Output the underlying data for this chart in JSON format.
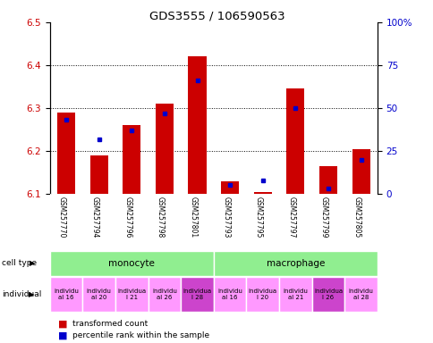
{
  "title": "GDS3555 / 106590563",
  "samples": [
    "GSM257770",
    "GSM257794",
    "GSM257796",
    "GSM257798",
    "GSM257801",
    "GSM257793",
    "GSM257795",
    "GSM257797",
    "GSM257799",
    "GSM257805"
  ],
  "red_values": [
    6.29,
    6.19,
    6.26,
    6.31,
    6.42,
    6.13,
    6.105,
    6.345,
    6.165,
    6.205
  ],
  "blue_values": [
    43,
    32,
    37,
    47,
    66,
    5,
    8,
    50,
    3,
    20
  ],
  "y_min": 6.1,
  "y_max": 6.5,
  "y_left_ticks": [
    6.1,
    6.2,
    6.3,
    6.4,
    6.5
  ],
  "y_right_ticks": [
    0,
    25,
    50,
    75,
    100
  ],
  "bar_color": "#cc0000",
  "blue_color": "#0000cc",
  "left_axis_color": "#cc0000",
  "right_axis_color": "#0000cc",
  "bg_color": "#ffffff",
  "tick_area_color": "#c8c8c8",
  "cell_type_color": "#90EE90",
  "individual_color_light": "#ff99ff",
  "individual_color_dark": "#cc44cc",
  "individual_labels": [
    "individu\nal 16",
    "individu\nal 20",
    "individua\nl 21",
    "individu\nal 26",
    "individua\nl 28",
    "individu\nal 16",
    "individua\nl 20",
    "individu\nal 21",
    "individua\nl 26",
    "individu\nal 28"
  ],
  "individual_dark_indices": [
    4,
    8
  ]
}
